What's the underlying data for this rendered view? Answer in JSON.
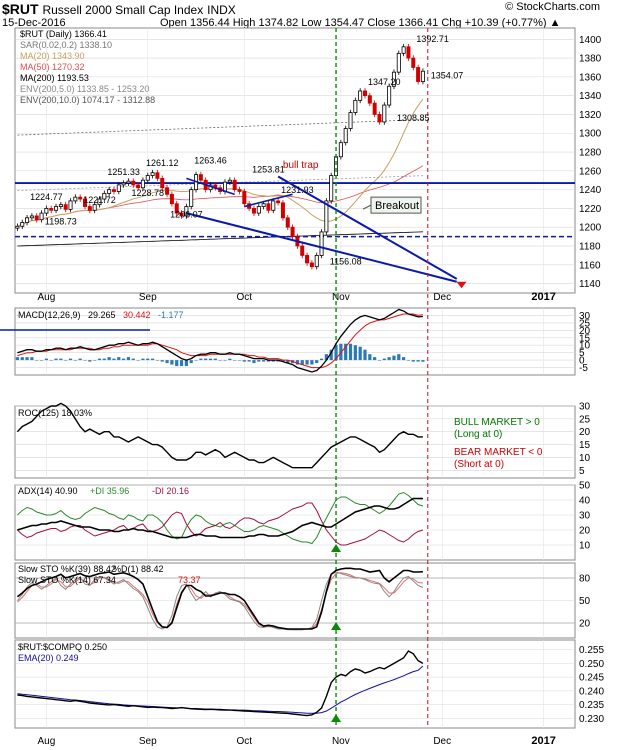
{
  "header": {
    "symbol": "$RUT",
    "name": "Russell 2000 Small Cap Index",
    "exchange": "INDX",
    "date": "15-Dec-2016",
    "ohlc": "Open 1356.44  High 1374.82  Low 1354.47  Close 1366.41  Chg +10.39 (+0.77%) ▲",
    "brand": "© StockCharts.com"
  },
  "colors": {
    "candle_up": "#000000",
    "candle_down": "#d00000",
    "ma20": "#c8a060",
    "ma50": "#e05050",
    "ma200": "#000000",
    "trend": "#0a1aa8",
    "green_marker": "#0a8a0a",
    "red_marker": "#e01010"
  },
  "chart_data": [
    {
      "id": "price",
      "type": "line",
      "title": "$RUT Russell 2000 Small Cap Index INDX",
      "legend": [
        {
          "text": "$RUT (Daily) 1366.41",
          "color": "#000000"
        },
        {
          "text": "SAR(0.02,0.2) 1338.10",
          "color": "#777777"
        },
        {
          "text": "MA(20) 1343.90",
          "color": "#c8a060"
        },
        {
          "text": "MA(50) 1270.32",
          "color": "#e05050"
        },
        {
          "text": "MA(200) 1193.53",
          "color": "#000000"
        },
        {
          "text": "ENV(200,5.0) 1133.85 - 1253.20",
          "color": "#888888"
        },
        {
          "text": "ENV(200,10.0) 1074.17 - 1312.88",
          "color": "#555555"
        }
      ],
      "ylim": [
        1130,
        1412
      ],
      "yticks": [
        1140,
        1160,
        1180,
        1200,
        1220,
        1240,
        1260,
        1280,
        1300,
        1320,
        1340,
        1360,
        1380,
        1400
      ],
      "close": [
        1201,
        1205,
        1210,
        1212,
        1208,
        1215,
        1220,
        1218,
        1222,
        1224,
        1219,
        1228,
        1232,
        1230,
        1222,
        1218,
        1224,
        1230,
        1236,
        1240,
        1238,
        1245,
        1247,
        1249,
        1245,
        1242,
        1250,
        1255,
        1258,
        1252,
        1242,
        1235,
        1225,
        1215,
        1212,
        1222,
        1240,
        1256,
        1250,
        1240,
        1245,
        1242,
        1238,
        1248,
        1250,
        1240,
        1238,
        1225,
        1220,
        1215,
        1222,
        1225,
        1218,
        1228,
        1226,
        1210,
        1200,
        1190,
        1180,
        1170,
        1162,
        1158,
        1170,
        1195,
        1228,
        1255,
        1275,
        1290,
        1305,
        1322,
        1335,
        1345,
        1340,
        1332,
        1320,
        1312,
        1330,
        1350,
        1365,
        1385,
        1392,
        1380,
        1370,
        1355,
        1366
      ],
      "annotations": [
        {
          "text": "1251.33",
          "x": 22,
          "y": 1251.33
        },
        {
          "text": "1261.12",
          "x": 30,
          "y": 1261.12
        },
        {
          "text": "1263.46",
          "x": 40,
          "y": 1263.46
        },
        {
          "text": "1253.81",
          "x": 52,
          "y": 1253.81
        },
        {
          "text": "1224.77",
          "x": 6,
          "y": 1224.77
        },
        {
          "text": "1221.72",
          "x": 17,
          "y": 1221.72
        },
        {
          "text": "1228.78",
          "x": 27,
          "y": 1228.78
        },
        {
          "text": "1231.93",
          "x": 58,
          "y": 1231.93
        },
        {
          "text": "1198.73",
          "x": 9,
          "y": 1198.73
        },
        {
          "text": "1206.07",
          "x": 35,
          "y": 1206.07
        },
        {
          "text": "1156.08",
          "x": 68,
          "y": 1156.08
        },
        {
          "text": "1347.20",
          "x": 76,
          "y": 1347.2
        },
        {
          "text": "1308.85",
          "x": 82,
          "y": 1308.85
        },
        {
          "text": "1392.71",
          "x": 86,
          "y": 1392.71
        },
        {
          "text": "1354.07",
          "x": 89,
          "y": 1354.07
        },
        {
          "text": "bull trap",
          "x": 55,
          "y": 1263
        },
        {
          "text": "Breakout",
          "x": 72,
          "y": 1215
        }
      ]
    },
    {
      "id": "macd",
      "type": "line",
      "legend": [
        {
          "text": "MACD(12,26,9)",
          "color": "#000000"
        },
        {
          "text": "29.265",
          "color": "#000000"
        },
        {
          "text": "30.442",
          "color": "#e01010"
        },
        {
          "text": "-1.177",
          "color": "#2a7ab8"
        }
      ],
      "ylim": [
        -10,
        35
      ],
      "yticks": [
        -5,
        0,
        5,
        10,
        15,
        20,
        25,
        30
      ],
      "macd": [
        5,
        6,
        7,
        7,
        6,
        6,
        7,
        7,
        8,
        8,
        7,
        8,
        8,
        9,
        8,
        7,
        7,
        8,
        9,
        10,
        10,
        11,
        11,
        12,
        11,
        10,
        11,
        11,
        12,
        11,
        9,
        7,
        5,
        3,
        1,
        0,
        1,
        3,
        4,
        4,
        5,
        5,
        4,
        4,
        5,
        4,
        4,
        3,
        2,
        1,
        1,
        1,
        0,
        0,
        0,
        -1,
        -2,
        -3,
        -5,
        -6,
        -7,
        -8,
        -7,
        -4,
        0,
        5,
        11,
        16,
        20,
        24,
        27,
        29,
        30,
        29,
        28,
        27,
        28,
        30,
        32,
        34,
        33,
        31,
        30,
        29,
        29.3
      ],
      "signal": [
        3,
        4,
        5,
        5,
        6,
        6,
        6,
        7,
        7,
        7,
        7,
        7,
        8,
        8,
        8,
        8,
        7,
        7,
        8,
        8,
        9,
        9,
        10,
        10,
        10,
        10,
        10,
        10,
        11,
        11,
        10,
        9,
        8,
        7,
        5,
        4,
        3,
        3,
        3,
        3,
        4,
        4,
        4,
        4,
        4,
        4,
        4,
        4,
        3,
        3,
        2,
        2,
        1,
        1,
        1,
        0,
        0,
        -1,
        -2,
        -3,
        -4,
        -5,
        -5,
        -5,
        -4,
        -2,
        1,
        5,
        9,
        13,
        17,
        20,
        23,
        25,
        26,
        27,
        27,
        28,
        29,
        30,
        31,
        31,
        31,
        30,
        30.4
      ]
    },
    {
      "id": "roc",
      "type": "line",
      "legend": [
        {
          "text": "ROC(125) 18.03%",
          "color": "#000000"
        }
      ],
      "ylim": [
        2,
        30
      ],
      "yticks": [
        5,
        10,
        15,
        20,
        25,
        30
      ],
      "values": [
        20,
        22,
        23,
        24,
        26,
        28,
        29,
        30,
        30,
        31,
        30,
        28,
        25,
        22,
        20,
        21,
        20,
        19,
        20,
        20,
        18,
        18,
        17,
        16,
        17,
        18,
        17,
        16,
        15,
        15,
        14,
        12,
        10,
        9,
        9,
        9,
        10,
        12,
        12,
        11,
        12,
        13,
        12,
        10,
        11,
        12,
        11,
        10,
        9,
        9,
        8,
        8,
        9,
        10,
        9,
        8,
        7,
        6,
        6,
        6,
        6,
        6,
        8,
        10,
        12,
        14,
        15,
        16,
        17,
        18,
        18,
        17,
        16,
        15,
        14,
        12,
        13,
        15,
        17,
        19,
        20,
        19,
        19,
        18,
        18
      ],
      "notes": [
        {
          "text": "BULL MARKET > 0",
          "color": "#007700"
        },
        {
          "text": "(Long at 0)",
          "color": "#007700"
        },
        {
          "text": "BEAR MARKET < 0",
          "color": "#cc0000"
        },
        {
          "text": "(Short at 0)",
          "color": "#cc0000"
        }
      ]
    },
    {
      "id": "adx",
      "type": "line",
      "legend": [
        {
          "text": "ADX(14) 40.90",
          "color": "#000000"
        },
        {
          "text": "+DI 35.96",
          "color": "#2a8a2a"
        },
        {
          "text": "-DI 20.16",
          "color": "#a01040"
        }
      ],
      "ylim": [
        0,
        50
      ],
      "yticks": [
        10,
        20,
        30,
        40,
        50
      ],
      "adx": [
        20,
        21,
        22,
        23,
        23,
        24,
        24,
        25,
        25,
        26,
        25,
        24,
        23,
        22,
        22,
        22,
        21,
        20,
        20,
        20,
        19,
        19,
        20,
        20,
        21,
        20,
        20,
        19,
        19,
        18,
        17,
        16,
        15,
        15,
        15,
        15,
        16,
        17,
        17,
        16,
        16,
        16,
        15,
        15,
        15,
        15,
        15,
        15,
        16,
        16,
        17,
        17,
        16,
        16,
        16,
        17,
        18,
        19,
        21,
        23,
        24,
        25,
        24,
        23,
        22,
        22,
        24,
        26,
        28,
        30,
        32,
        33,
        34,
        35,
        36,
        36,
        35,
        34,
        34,
        35,
        37,
        39,
        41,
        41,
        40.9
      ],
      "plus_di": [
        30,
        33,
        35,
        34,
        32,
        31,
        30,
        30,
        31,
        33,
        30,
        28,
        27,
        28,
        31,
        33,
        35,
        34,
        33,
        31,
        30,
        28,
        27,
        30,
        29,
        27,
        26,
        30,
        30,
        28,
        25,
        20,
        16,
        14,
        15,
        22,
        27,
        30,
        29,
        26,
        24,
        23,
        22,
        24,
        25,
        23,
        21,
        19,
        19,
        20,
        22,
        23,
        22,
        21,
        20,
        18,
        16,
        14,
        13,
        12,
        12,
        11,
        15,
        22,
        28,
        34,
        40,
        42,
        42,
        40,
        38,
        37,
        37,
        35,
        33,
        31,
        33,
        36,
        40,
        44,
        45,
        43,
        40,
        37,
        36
      ],
      "minus_di": [
        20,
        17,
        15,
        16,
        18,
        19,
        20,
        21,
        21,
        19,
        20,
        22,
        23,
        23,
        20,
        18,
        16,
        17,
        18,
        19,
        20,
        22,
        23,
        20,
        21,
        23,
        24,
        20,
        19,
        20,
        22,
        26,
        30,
        32,
        31,
        24,
        19,
        16,
        18,
        21,
        22,
        23,
        25,
        22,
        21,
        23,
        26,
        28,
        28,
        27,
        25,
        24,
        26,
        27,
        28,
        30,
        32,
        34,
        35,
        36,
        38,
        38,
        33,
        26,
        20,
        16,
        12,
        10,
        10,
        11,
        12,
        13,
        14,
        16,
        18,
        20,
        19,
        17,
        15,
        13,
        12,
        14,
        17,
        19,
        20
      ]
    },
    {
      "id": "sto",
      "type": "line",
      "legend": [
        {
          "text": "Slow STO %K(39) 88.42",
          "color": "#000000"
        },
        {
          "text": "%D(1) 88.42",
          "color": "#000000"
        },
        {
          "text": "Slow STO %K(14) 67.34",
          "color": "#666666"
        },
        {
          "text": "73.37",
          "color": "#e01010"
        }
      ],
      "ylim": [
        0,
        100
      ],
      "yticks": [
        20,
        50,
        80
      ],
      "k39": [
        55,
        60,
        66,
        70,
        72,
        75,
        78,
        80,
        82,
        85,
        80,
        82,
        84,
        86,
        83,
        82,
        84,
        86,
        87,
        88,
        85,
        86,
        87,
        85,
        82,
        78,
        72,
        55,
        38,
        22,
        15,
        14,
        20,
        40,
        60,
        70,
        70,
        65,
        62,
        56,
        56,
        58,
        60,
        60,
        58,
        58,
        55,
        50,
        40,
        30,
        20,
        16,
        17,
        16,
        14,
        13,
        12,
        12,
        12,
        12,
        12,
        12,
        15,
        35,
        62,
        85,
        90,
        92,
        93,
        93,
        92,
        92,
        90,
        88,
        89,
        90,
        80,
        75,
        80,
        85,
        90,
        90,
        88,
        88,
        88.4
      ],
      "k14": [
        50,
        58,
        68,
        74,
        70,
        65,
        70,
        75,
        80,
        70,
        65,
        72,
        78,
        80,
        72,
        70,
        78,
        82,
        80,
        76,
        72,
        75,
        78,
        72,
        66,
        62,
        55,
        40,
        25,
        15,
        12,
        15,
        30,
        55,
        70,
        72,
        60,
        50,
        55,
        62,
        55,
        60,
        62,
        58,
        52,
        50,
        48,
        42,
        32,
        22,
        15,
        14,
        16,
        14,
        12,
        12,
        11,
        11,
        11,
        11,
        12,
        14,
        25,
        50,
        72,
        85,
        88,
        86,
        84,
        82,
        80,
        80,
        78,
        75,
        73,
        72,
        62,
        55,
        62,
        72,
        80,
        82,
        76,
        70,
        67.3
      ],
      "d14": [
        48,
        54,
        62,
        70,
        72,
        68,
        68,
        72,
        78,
        75,
        68,
        69,
        75,
        79,
        76,
        71,
        74,
        80,
        81,
        78,
        74,
        73,
        76,
        75,
        69,
        64,
        58,
        48,
        32,
        20,
        14,
        14,
        22,
        45,
        62,
        70,
        66,
        56,
        53,
        58,
        58,
        58,
        61,
        60,
        55,
        51,
        49,
        45,
        37,
        27,
        18,
        15,
        15,
        15,
        13,
        12,
        12,
        11,
        11,
        11,
        12,
        13,
        19,
        38,
        60,
        78,
        86,
        87,
        86,
        84,
        81,
        80,
        79,
        77,
        75,
        73,
        67,
        60,
        60,
        67,
        75,
        80,
        79,
        74,
        73.4
      ]
    },
    {
      "id": "ratio",
      "type": "line",
      "legend": [
        {
          "text": "$RUT:$COMPQ 0.250",
          "color": "#000000"
        },
        {
          "text": "EMA(20) 0.249",
          "color": "#1010a0"
        }
      ],
      "ylim": [
        0.2265,
        0.2585
      ],
      "yticks": [
        0.23,
        0.235,
        0.24,
        0.245,
        0.25,
        0.255
      ],
      "values": [
        0.2385,
        0.2383,
        0.238,
        0.2378,
        0.2376,
        0.2374,
        0.2372,
        0.237,
        0.2368,
        0.2366,
        0.2364,
        0.2362,
        0.2365,
        0.2362,
        0.2359,
        0.2356,
        0.2354,
        0.2352,
        0.235,
        0.2349,
        0.235,
        0.2348,
        0.2346,
        0.2344,
        0.2346,
        0.2344,
        0.2342,
        0.234,
        0.2341,
        0.234,
        0.2339,
        0.2338,
        0.2336,
        0.2337,
        0.2339,
        0.2337,
        0.2335,
        0.2334,
        0.2333,
        0.2332,
        0.2333,
        0.2332,
        0.2331,
        0.233,
        0.233,
        0.2329,
        0.2328,
        0.2327,
        0.2326,
        0.2325,
        0.2324,
        0.2323,
        0.2322,
        0.2321,
        0.232,
        0.2319,
        0.2318,
        0.2316,
        0.2314,
        0.2312,
        0.231,
        0.2313,
        0.2322,
        0.2338,
        0.238,
        0.243,
        0.245,
        0.246,
        0.2455,
        0.247,
        0.248,
        0.2475,
        0.2465,
        0.247,
        0.2478,
        0.2485,
        0.248,
        0.249,
        0.25,
        0.251,
        0.252,
        0.2545,
        0.2535,
        0.251,
        0.25
      ],
      "ema": [
        0.239,
        0.2388,
        0.2386,
        0.2384,
        0.2382,
        0.238,
        0.2378,
        0.2376,
        0.2374,
        0.2372,
        0.237,
        0.2368,
        0.2367,
        0.2365,
        0.2363,
        0.2361,
        0.2359,
        0.2357,
        0.2355,
        0.2353,
        0.2352,
        0.2351,
        0.2349,
        0.2348,
        0.2347,
        0.2346,
        0.2345,
        0.2344,
        0.2343,
        0.2342,
        0.2341,
        0.234,
        0.2339,
        0.2338,
        0.2338,
        0.2337,
        0.2336,
        0.2336,
        0.2335,
        0.2334,
        0.2334,
        0.2333,
        0.2333,
        0.2332,
        0.2331,
        0.2331,
        0.233,
        0.233,
        0.2329,
        0.2328,
        0.2328,
        0.2327,
        0.2326,
        0.2325,
        0.2325,
        0.2324,
        0.2323,
        0.2322,
        0.2321,
        0.232,
        0.2319,
        0.2319,
        0.2319,
        0.2321,
        0.2327,
        0.2337,
        0.2348,
        0.2359,
        0.2368,
        0.2378,
        0.2387,
        0.2395,
        0.2402,
        0.2409,
        0.2416,
        0.2423,
        0.2429,
        0.2435,
        0.2441,
        0.2448,
        0.2455,
        0.2463,
        0.247,
        0.2475,
        0.249
      ]
    }
  ],
  "x_axis": {
    "months": [
      {
        "label": "Aug",
        "idx": 6
      },
      {
        "label": "Sep",
        "idx": 27
      },
      {
        "label": "Oct",
        "idx": 47
      },
      {
        "label": "Nov",
        "idx": 67
      },
      {
        "label": "Dec",
        "idx": 88
      },
      {
        "label": "2017",
        "idx": 109
      }
    ],
    "n_slots": 116
  }
}
